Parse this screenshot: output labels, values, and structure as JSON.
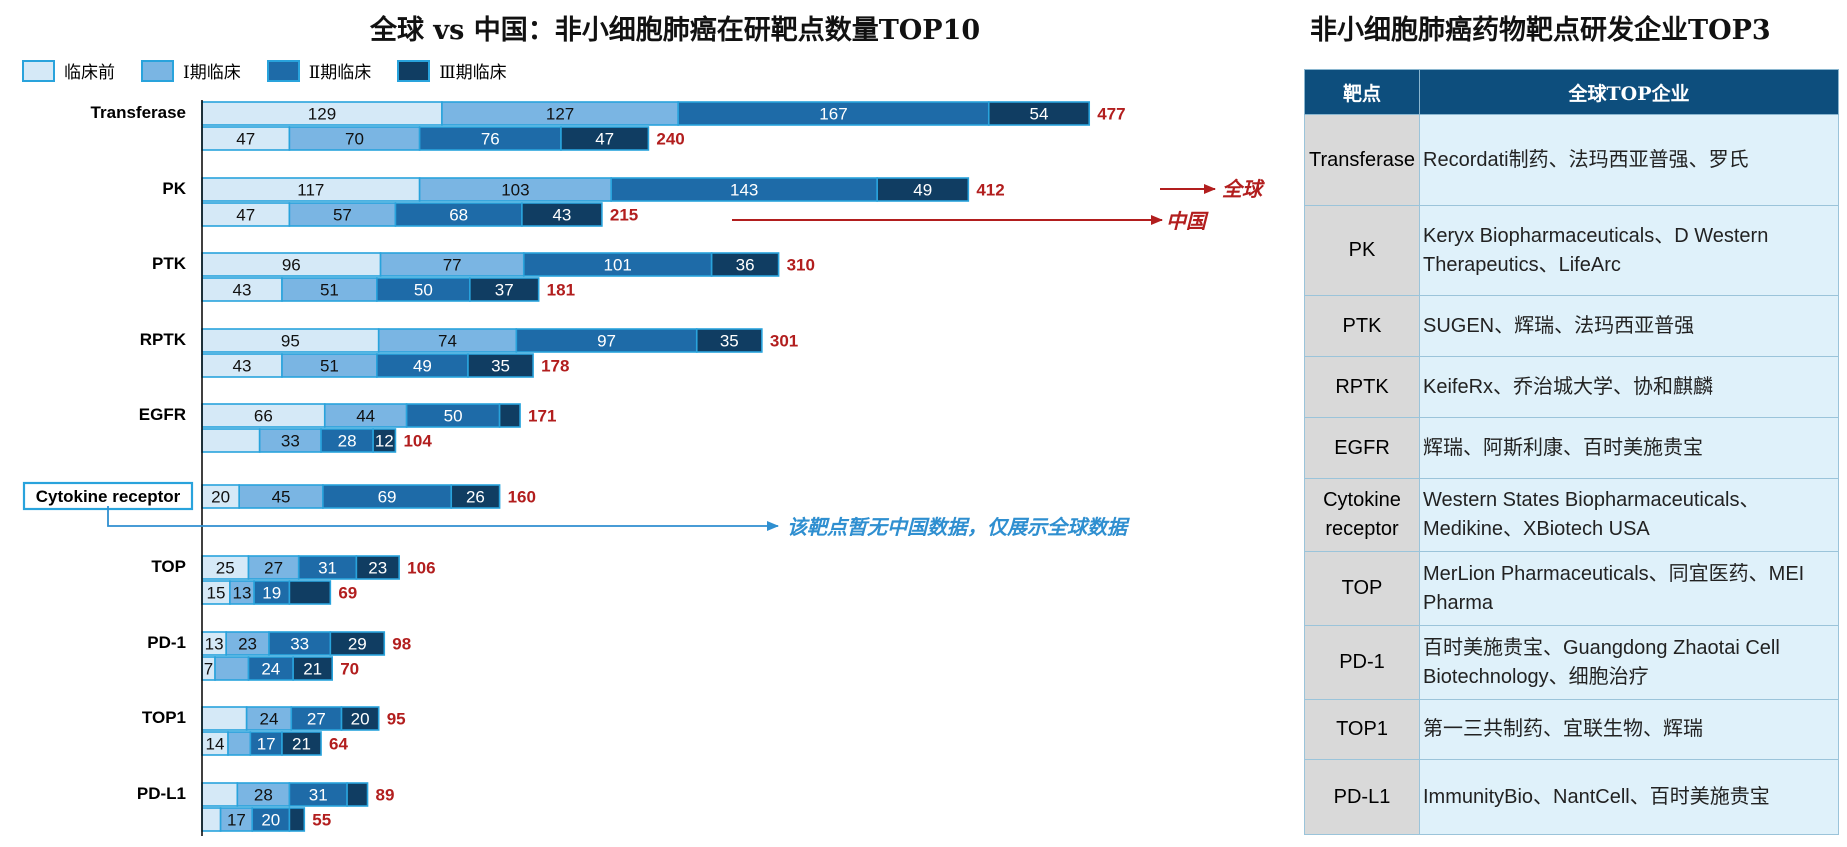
{
  "chart_title": "全球 vs 中国：非小细胞肺癌在研靶点数量TOP10",
  "table_title": "非小细胞肺癌药物靶点研发企业TOP3",
  "legend": [
    {
      "label": "临床前",
      "color": "#d5e9f7"
    },
    {
      "label": "Ⅰ期临床",
      "color": "#7ab5e3"
    },
    {
      "label": "Ⅱ期临床",
      "color": "#1e6ba8"
    },
    {
      "label": "Ⅲ期临床",
      "color": "#103d62"
    }
  ],
  "annotations": {
    "global": "全球",
    "china": "中国",
    "cytokine_note": "该靶点暂无中国数据，仅展示全球数据"
  },
  "colors": {
    "total_label": "#b21e1e",
    "arrow": "#b21e1e",
    "note": "#2f8fd0",
    "bar_border": "#29a3dc"
  },
  "chart_data": {
    "type": "bar",
    "orientation": "horizontal",
    "stacked": true,
    "categories": [
      "Transferase",
      "PK",
      "PTK",
      "RPTK",
      "EGFR",
      "Cytokine receptor",
      "TOP",
      "PD-1",
      "TOP1",
      "PD-L1"
    ],
    "series_names": [
      "临床前",
      "Ⅰ期临床",
      "Ⅱ期临床",
      "Ⅲ期临床"
    ],
    "global": {
      "values": [
        [
          129,
          127,
          167,
          54
        ],
        [
          117,
          103,
          143,
          49
        ],
        [
          96,
          77,
          101,
          36
        ],
        [
          95,
          74,
          97,
          35
        ],
        [
          66,
          44,
          50,
          11
        ],
        [
          20,
          45,
          69,
          26
        ],
        [
          25,
          27,
          31,
          23
        ],
        [
          13,
          23,
          33,
          29
        ],
        [
          24,
          24,
          27,
          20
        ],
        [
          19,
          28,
          31,
          11
        ]
      ],
      "labels": [
        [
          "129",
          "127",
          "167",
          "54"
        ],
        [
          "117",
          "103",
          "143",
          "49"
        ],
        [
          "96",
          "77",
          "101",
          "36"
        ],
        [
          "95",
          "74",
          "97",
          "35"
        ],
        [
          "66",
          "44",
          "50",
          ""
        ],
        [
          "20",
          "45",
          "69",
          "26"
        ],
        [
          "25",
          "27",
          "31",
          "23"
        ],
        [
          "13",
          "23",
          "33",
          "29"
        ],
        [
          "",
          "24",
          "27",
          "20"
        ],
        [
          "",
          "28",
          "31",
          ""
        ]
      ],
      "totals": [
        "477",
        "412",
        "310",
        "301",
        "171",
        "160",
        "106",
        "98",
        "95",
        "89"
      ]
    },
    "china": {
      "values": [
        [
          47,
          70,
          76,
          47
        ],
        [
          47,
          57,
          68,
          43
        ],
        [
          43,
          51,
          50,
          37
        ],
        [
          43,
          51,
          49,
          35
        ],
        [
          31,
          33,
          28,
          12
        ],
        null,
        [
          15,
          13,
          19,
          22
        ],
        [
          7,
          18,
          24,
          21
        ],
        [
          14,
          12,
          17,
          21
        ],
        [
          10,
          17,
          20,
          8
        ]
      ],
      "labels": [
        [
          "47",
          "70",
          "76",
          "47"
        ],
        [
          "47",
          "57",
          "68",
          "43"
        ],
        [
          "43",
          "51",
          "50",
          "37"
        ],
        [
          "43",
          "51",
          "49",
          "35"
        ],
        [
          "",
          "33",
          "28",
          "12"
        ],
        null,
        [
          "15",
          "13",
          "19",
          ""
        ],
        [
          "7",
          "",
          "24",
          "21"
        ],
        [
          "14",
          "",
          "17",
          "21"
        ],
        [
          "",
          "17",
          "20",
          ""
        ]
      ],
      "totals": [
        "240",
        "215",
        "181",
        "178",
        "104",
        null,
        "69",
        "70",
        "64",
        "55"
      ]
    },
    "title": "全球 vs 中国：非小细胞肺癌在研靶点数量TOP10",
    "legend_position": "top-left",
    "grid": false
  },
  "table": {
    "headers": [
      "靶点",
      "全球TOP企业"
    ],
    "rows": [
      {
        "target": "Transferase",
        "companies": "Recordati制药、法玛西亚普强、罗氏"
      },
      {
        "target": "PK",
        "companies": "Keryx Biopharmaceuticals、D Western Therapeutics、LifeArc"
      },
      {
        "target": "PTK",
        "companies": "SUGEN、辉瑞、法玛西亚普强"
      },
      {
        "target": "RPTK",
        "companies": "KeifeRx、乔治城大学、协和麒麟"
      },
      {
        "target": "EGFR",
        "companies": "辉瑞、阿斯利康、百时美施贵宝"
      },
      {
        "target": "Cytokine receptor",
        "companies": "Western States Biopharmaceuticals、Medikine、XBiotech USA"
      },
      {
        "target": "TOP",
        "companies": "MerLion Pharmaceuticals、同宜医药、MEI Pharma"
      },
      {
        "target": "PD-1",
        "companies": "百时美施贵宝、Guangdong Zhaotai Cell Biotechnology、细胞治疗"
      },
      {
        "target": "TOP1",
        "companies": "第一三共制药、宜联生物、辉瑞"
      },
      {
        "target": "PD-L1",
        "companies": "ImmunityBio、NantCell、百时美施贵宝"
      }
    ]
  }
}
